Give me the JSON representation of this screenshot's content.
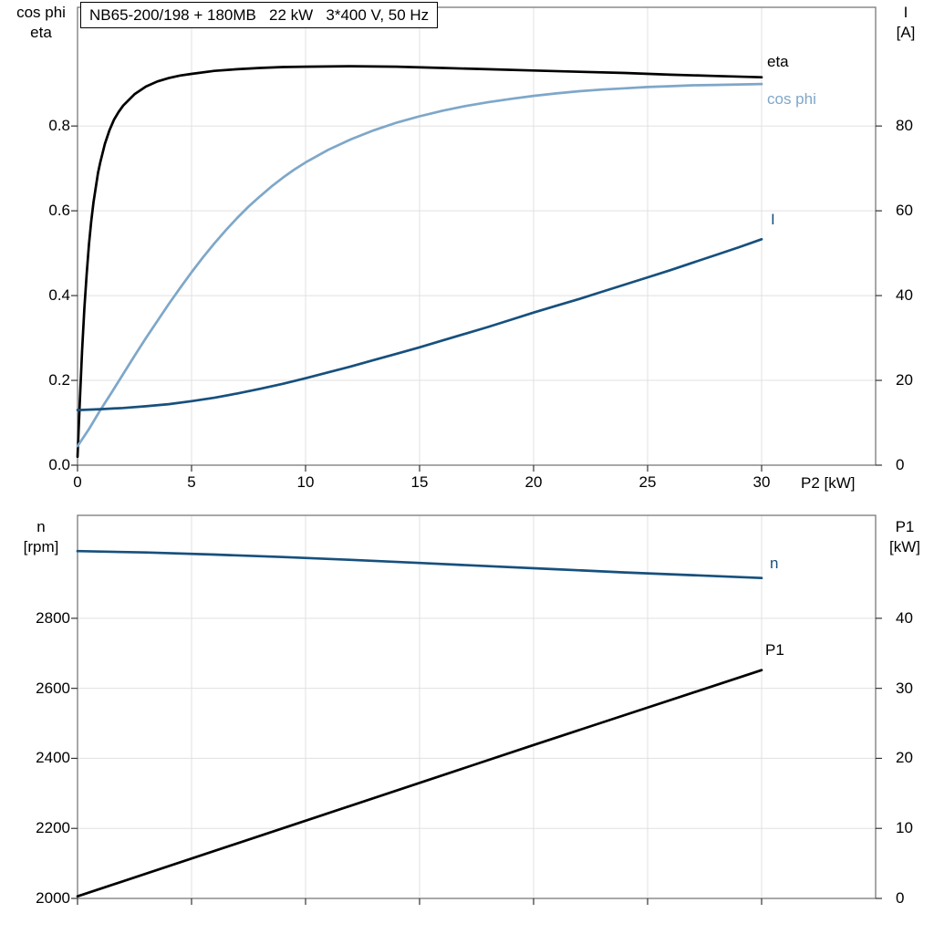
{
  "header": {
    "title": "NB65-200/198 + 180MB   22 kW   3*400 V, 50 Hz"
  },
  "colors": {
    "black": "#000000",
    "light_blue": "#7ea7c9",
    "dark_blue": "#17507d",
    "grid": "#e0e0e0",
    "frame": "#6e6e6e",
    "tick": "#333333"
  },
  "series_labels": {
    "eta": {
      "text": "eta",
      "color": "#000000"
    },
    "cos_phi": {
      "text": "cos phi",
      "color": "#7ea7c9"
    },
    "current": {
      "text": "I",
      "color": "#17507d"
    },
    "speed": {
      "text": "n",
      "color": "#17507d"
    },
    "p1": {
      "text": "P1",
      "color": "#000000"
    }
  },
  "chart_data": [
    {
      "id": "top",
      "type": "line",
      "title": "NB65-200/198 + 180MB   22 kW   3*400 V, 50 Hz",
      "xlabel": "P2 [kW]",
      "x_range": [
        0,
        35
      ],
      "x_ticks": [
        0,
        5,
        10,
        15,
        20,
        25,
        30
      ],
      "x_tick_labels": true,
      "grid": true,
      "left_axis": {
        "title": "cos phi\neta",
        "range": [
          0,
          1.08
        ],
        "ticks": [
          0,
          0.2,
          0.4,
          0.6,
          0.8
        ],
        "decimals": 1
      },
      "right_axis": {
        "title": "I\n[A]",
        "range": [
          0,
          108
        ],
        "ticks": [
          0,
          20,
          40,
          60,
          80
        ],
        "decimals": 0
      },
      "series": [
        {
          "name": "eta",
          "axis": "left",
          "color": "#000000",
          "points": [
            [
              0,
              0.02
            ],
            [
              0.1,
              0.15
            ],
            [
              0.2,
              0.27
            ],
            [
              0.3,
              0.37
            ],
            [
              0.4,
              0.45
            ],
            [
              0.5,
              0.52
            ],
            [
              0.6,
              0.575
            ],
            [
              0.7,
              0.62
            ],
            [
              0.8,
              0.655
            ],
            [
              0.9,
              0.69
            ],
            [
              1,
              0.715
            ],
            [
              1.2,
              0.758
            ],
            [
              1.4,
              0.79
            ],
            [
              1.6,
              0.815
            ],
            [
              1.8,
              0.833
            ],
            [
              2,
              0.848
            ],
            [
              2.5,
              0.875
            ],
            [
              3,
              0.893
            ],
            [
              3.5,
              0.905
            ],
            [
              4,
              0.913
            ],
            [
              4.5,
              0.919
            ],
            [
              5,
              0.923
            ],
            [
              6,
              0.93
            ],
            [
              7,
              0.934
            ],
            [
              8,
              0.937
            ],
            [
              9,
              0.939
            ],
            [
              10,
              0.94
            ],
            [
              12,
              0.941
            ],
            [
              14,
              0.94
            ],
            [
              16,
              0.937
            ],
            [
              18,
              0.934
            ],
            [
              20,
              0.931
            ],
            [
              22,
              0.928
            ],
            [
              24,
              0.925
            ],
            [
              26,
              0.921
            ],
            [
              28,
              0.918
            ],
            [
              30,
              0.915
            ]
          ]
        },
        {
          "name": "cos phi",
          "axis": "left",
          "color": "#7ea7c9",
          "points": [
            [
              0,
              0.045
            ],
            [
              0.5,
              0.085
            ],
            [
              1,
              0.13
            ],
            [
              1.5,
              0.172
            ],
            [
              2,
              0.215
            ],
            [
              2.5,
              0.258
            ],
            [
              3,
              0.3
            ],
            [
              3.5,
              0.34
            ],
            [
              4,
              0.38
            ],
            [
              4.5,
              0.418
            ],
            [
              5,
              0.455
            ],
            [
              5.5,
              0.49
            ],
            [
              6,
              0.523
            ],
            [
              6.5,
              0.554
            ],
            [
              7,
              0.583
            ],
            [
              7.5,
              0.61
            ],
            [
              8,
              0.634
            ],
            [
              8.5,
              0.657
            ],
            [
              9,
              0.678
            ],
            [
              9.5,
              0.697
            ],
            [
              10,
              0.714
            ],
            [
              11,
              0.744
            ],
            [
              12,
              0.769
            ],
            [
              13,
              0.79
            ],
            [
              14,
              0.808
            ],
            [
              15,
              0.823
            ],
            [
              16,
              0.836
            ],
            [
              17,
              0.847
            ],
            [
              18,
              0.856
            ],
            [
              19,
              0.864
            ],
            [
              20,
              0.871
            ],
            [
              21,
              0.877
            ],
            [
              22,
              0.882
            ],
            [
              23,
              0.886
            ],
            [
              24,
              0.889
            ],
            [
              25,
              0.892
            ],
            [
              26,
              0.894
            ],
            [
              27,
              0.896
            ],
            [
              28,
              0.897
            ],
            [
              29,
              0.898
            ],
            [
              30,
              0.899
            ]
          ]
        },
        {
          "name": "I",
          "axis": "right",
          "color": "#17507d",
          "points": [
            [
              0,
              13
            ],
            [
              1,
              13.2
            ],
            [
              2,
              13.5
            ],
            [
              3,
              13.9
            ],
            [
              4,
              14.4
            ],
            [
              5,
              15.1
            ],
            [
              6,
              15.9
            ],
            [
              7,
              16.9
            ],
            [
              8,
              18
            ],
            [
              9,
              19.2
            ],
            [
              10,
              20.5
            ],
            [
              11,
              21.9
            ],
            [
              12,
              23.3
            ],
            [
              13,
              24.8
            ],
            [
              14,
              26.3
            ],
            [
              15,
              27.8
            ],
            [
              16,
              29.4
            ],
            [
              17,
              31
            ],
            [
              18,
              32.6
            ],
            [
              19,
              34.3
            ],
            [
              20,
              36
            ],
            [
              21,
              37.6
            ],
            [
              22,
              39.2
            ],
            [
              23,
              40.9
            ],
            [
              24,
              42.6
            ],
            [
              25,
              44.3
            ],
            [
              26,
              46
            ],
            [
              27,
              47.8
            ],
            [
              28,
              49.6
            ],
            [
              29,
              51.4
            ],
            [
              30,
              53.3
            ]
          ]
        }
      ]
    },
    {
      "id": "bottom",
      "type": "line",
      "title": "",
      "xlabel": "",
      "x_range": [
        0,
        35
      ],
      "x_ticks": [
        0,
        5,
        10,
        15,
        20,
        25,
        30
      ],
      "x_tick_labels": false,
      "grid": true,
      "left_axis": {
        "title": "n\n[rpm]",
        "range": [
          2000,
          3094
        ],
        "ticks": [
          2000,
          2200,
          2400,
          2600,
          2800
        ],
        "decimals": 0
      },
      "right_axis": {
        "title": "P1\n[kW]",
        "range": [
          0,
          54.7
        ],
        "ticks": [
          0,
          10,
          20,
          30,
          40
        ],
        "decimals": 0
      },
      "series": [
        {
          "name": "n",
          "axis": "left",
          "color": "#17507d",
          "points": [
            [
              0,
              2992
            ],
            [
              3,
              2988
            ],
            [
              6,
              2982
            ],
            [
              9,
              2975
            ],
            [
              12,
              2967
            ],
            [
              15,
              2958
            ],
            [
              18,
              2949
            ],
            [
              21,
              2940
            ],
            [
              24,
              2931
            ],
            [
              27,
              2923
            ],
            [
              30,
              2915
            ]
          ]
        },
        {
          "name": "P1",
          "axis": "right",
          "color": "#000000",
          "points": [
            [
              0,
              0.3
            ],
            [
              10,
              11.1
            ],
            [
              20,
              21.9
            ],
            [
              30,
              32.6
            ]
          ]
        }
      ]
    }
  ]
}
